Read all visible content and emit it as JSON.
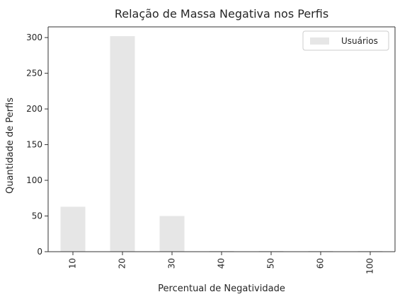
{
  "chart_data": {
    "type": "bar",
    "title": "Relação de Massa Negativa nos Perfis",
    "xlabel": "Percentual de Negatividade",
    "ylabel": "Quantidade de Perfis",
    "categories": [
      "10",
      "20",
      "30",
      "40",
      "50",
      "60",
      "100"
    ],
    "series": [
      {
        "name": "Usuários",
        "values": [
          63,
          302,
          50,
          1,
          1,
          1,
          1
        ]
      }
    ],
    "ylim": [
      0,
      315
    ],
    "yticks": [
      0,
      50,
      100,
      150,
      200,
      250,
      300
    ],
    "grid": false,
    "legend_position": "top-right",
    "colors": {
      "bar": "#e6e6e6",
      "axis": "#333333",
      "text": "#262626"
    }
  }
}
